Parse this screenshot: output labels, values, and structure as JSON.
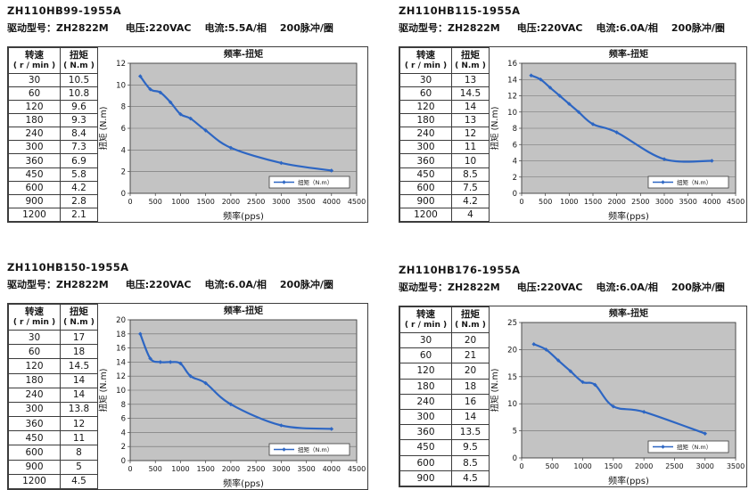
{
  "shared": {
    "table_header": {
      "col1_line1": "转速",
      "col1_line2": "( r / min )",
      "col2_line1": "扭矩",
      "col2_line2": "( N.m )"
    },
    "colors": {
      "series": "#2d66c3",
      "plot_bg": "#c3c3c3",
      "grid": "#6e6e6e",
      "frame": "#3c3c3c",
      "legend_bg": "#ffffff",
      "text": "#151515"
    }
  },
  "panels": [
    {
      "model": "ZH110HB99-1955A",
      "specs": {
        "driver": "驱动型号：ZH2822M",
        "voltage": "电压:220VAC",
        "current": "电流:5.5A/相",
        "pulses": "200脉冲/圈"
      },
      "rows": [
        [
          "30",
          "10.5"
        ],
        [
          "60",
          "10.8"
        ],
        [
          "120",
          "9.6"
        ],
        [
          "180",
          "9.3"
        ],
        [
          "240",
          "8.4"
        ],
        [
          "300",
          "7.3"
        ],
        [
          "360",
          "6.9"
        ],
        [
          "450",
          "5.8"
        ],
        [
          "600",
          "4.2"
        ],
        [
          "900",
          "2.8"
        ],
        [
          "1200",
          "2.1"
        ]
      ]
    },
    {
      "model": "ZH110HB115-1955A",
      "specs": {
        "driver": "驱动型号：ZH2822M",
        "voltage": "电压:220VAC",
        "current": "电流:6.0A/相",
        "pulses": "200脉冲/圈"
      },
      "rows": [
        [
          "30",
          "13"
        ],
        [
          "60",
          "14.5"
        ],
        [
          "120",
          "14"
        ],
        [
          "180",
          "13"
        ],
        [
          "240",
          "12"
        ],
        [
          "300",
          "11"
        ],
        [
          "360",
          "10"
        ],
        [
          "450",
          "8.5"
        ],
        [
          "600",
          "7.5"
        ],
        [
          "900",
          "4.2"
        ],
        [
          "1200",
          "4"
        ]
      ]
    },
    {
      "model": "ZH110HB150-1955A",
      "specs": {
        "driver": "驱动型号：ZH2822M",
        "voltage": "电压:220VAC",
        "current": "电流:6.0A/相",
        "pulses": "200脉冲/圈"
      },
      "rows": [
        [
          "30",
          "17"
        ],
        [
          "60",
          "18"
        ],
        [
          "120",
          "14.5"
        ],
        [
          "180",
          "14"
        ],
        [
          "240",
          "14"
        ],
        [
          "300",
          "13.8"
        ],
        [
          "360",
          "12"
        ],
        [
          "450",
          "11"
        ],
        [
          "600",
          "8"
        ],
        [
          "900",
          "5"
        ],
        [
          "1200",
          "4.5"
        ]
      ]
    },
    {
      "model": "ZH110HB176-1955A",
      "specs": {
        "driver": "驱动型号：ZH2822M",
        "voltage": "电压:220VAC",
        "current": "电流:6.0A/相",
        "pulses": "200脉冲/圈"
      },
      "rows": [
        [
          "30",
          "20"
        ],
        [
          "60",
          "21"
        ],
        [
          "120",
          "20"
        ],
        [
          "180",
          "18"
        ],
        [
          "240",
          "16"
        ],
        [
          "300",
          "14"
        ],
        [
          "360",
          "13.5"
        ],
        [
          "450",
          "9.5"
        ],
        [
          "600",
          "8.5"
        ],
        [
          "900",
          "4.5"
        ]
      ]
    }
  ],
  "chart_data": [
    {
      "type": "line",
      "model": "ZH110HB99-1955A",
      "title": "频率-扭矩",
      "xlabel": "频率(pps)",
      "ylabel": "扭矩 (N.m)",
      "legend": "扭矩（N.m）",
      "legend_position": "bottom-right",
      "grid": "horizontal",
      "xlim": [
        0,
        4500
      ],
      "xstep": 500,
      "ylim": [
        0,
        12
      ],
      "ystep": 2,
      "x": [
        200,
        400,
        600,
        800,
        1000,
        1200,
        1500,
        2000,
        3000,
        4000
      ],
      "y": [
        10.8,
        9.6,
        9.3,
        8.4,
        7.3,
        6.9,
        5.8,
        4.2,
        2.8,
        2.1
      ]
    },
    {
      "type": "line",
      "model": "ZH110HB115-1955A",
      "title": "频率-扭矩",
      "xlabel": "频率(pps)",
      "ylabel": "扭矩 (N.m)",
      "legend": "扭矩（N.m）",
      "legend_position": "bottom-right",
      "grid": "horizontal",
      "xlim": [
        0,
        4500
      ],
      "xstep": 500,
      "ylim": [
        0,
        16
      ],
      "ystep": 2,
      "x": [
        200,
        400,
        600,
        800,
        1000,
        1200,
        1500,
        2000,
        3000,
        4000
      ],
      "y": [
        14.5,
        14,
        13,
        12,
        11,
        10,
        8.5,
        7.5,
        4.2,
        4
      ]
    },
    {
      "type": "line",
      "model": "ZH110HB150-1955A",
      "title": "频率-扭矩",
      "xlabel": "频率(pps)",
      "ylabel": "扭矩 (N.m)",
      "legend": "扭矩（N.m）",
      "legend_position": "bottom-right",
      "grid": "horizontal",
      "xlim": [
        0,
        4500
      ],
      "xstep": 500,
      "ylim": [
        0,
        20
      ],
      "ystep": 2,
      "x": [
        200,
        400,
        600,
        800,
        1000,
        1200,
        1500,
        2000,
        3000,
        4000
      ],
      "y": [
        18,
        14.5,
        14,
        14,
        13.8,
        12,
        11,
        8,
        5,
        4.5
      ]
    },
    {
      "type": "line",
      "model": "ZH110HB176-1955A",
      "title": "频率-扭矩",
      "xlabel": "频率(pps)",
      "ylabel": "扭矩 (N.m)",
      "legend": "扭矩（N.m）",
      "legend_position": "bottom-right",
      "grid": "horizontal",
      "xlim": [
        0,
        3500
      ],
      "xstep": 500,
      "ylim": [
        0,
        25
      ],
      "ystep": 5,
      "x": [
        200,
        400,
        600,
        800,
        1000,
        1200,
        1500,
        2000,
        3000
      ],
      "y": [
        21,
        20,
        18,
        16,
        14,
        13.5,
        9.5,
        8.5,
        4.5
      ]
    }
  ]
}
